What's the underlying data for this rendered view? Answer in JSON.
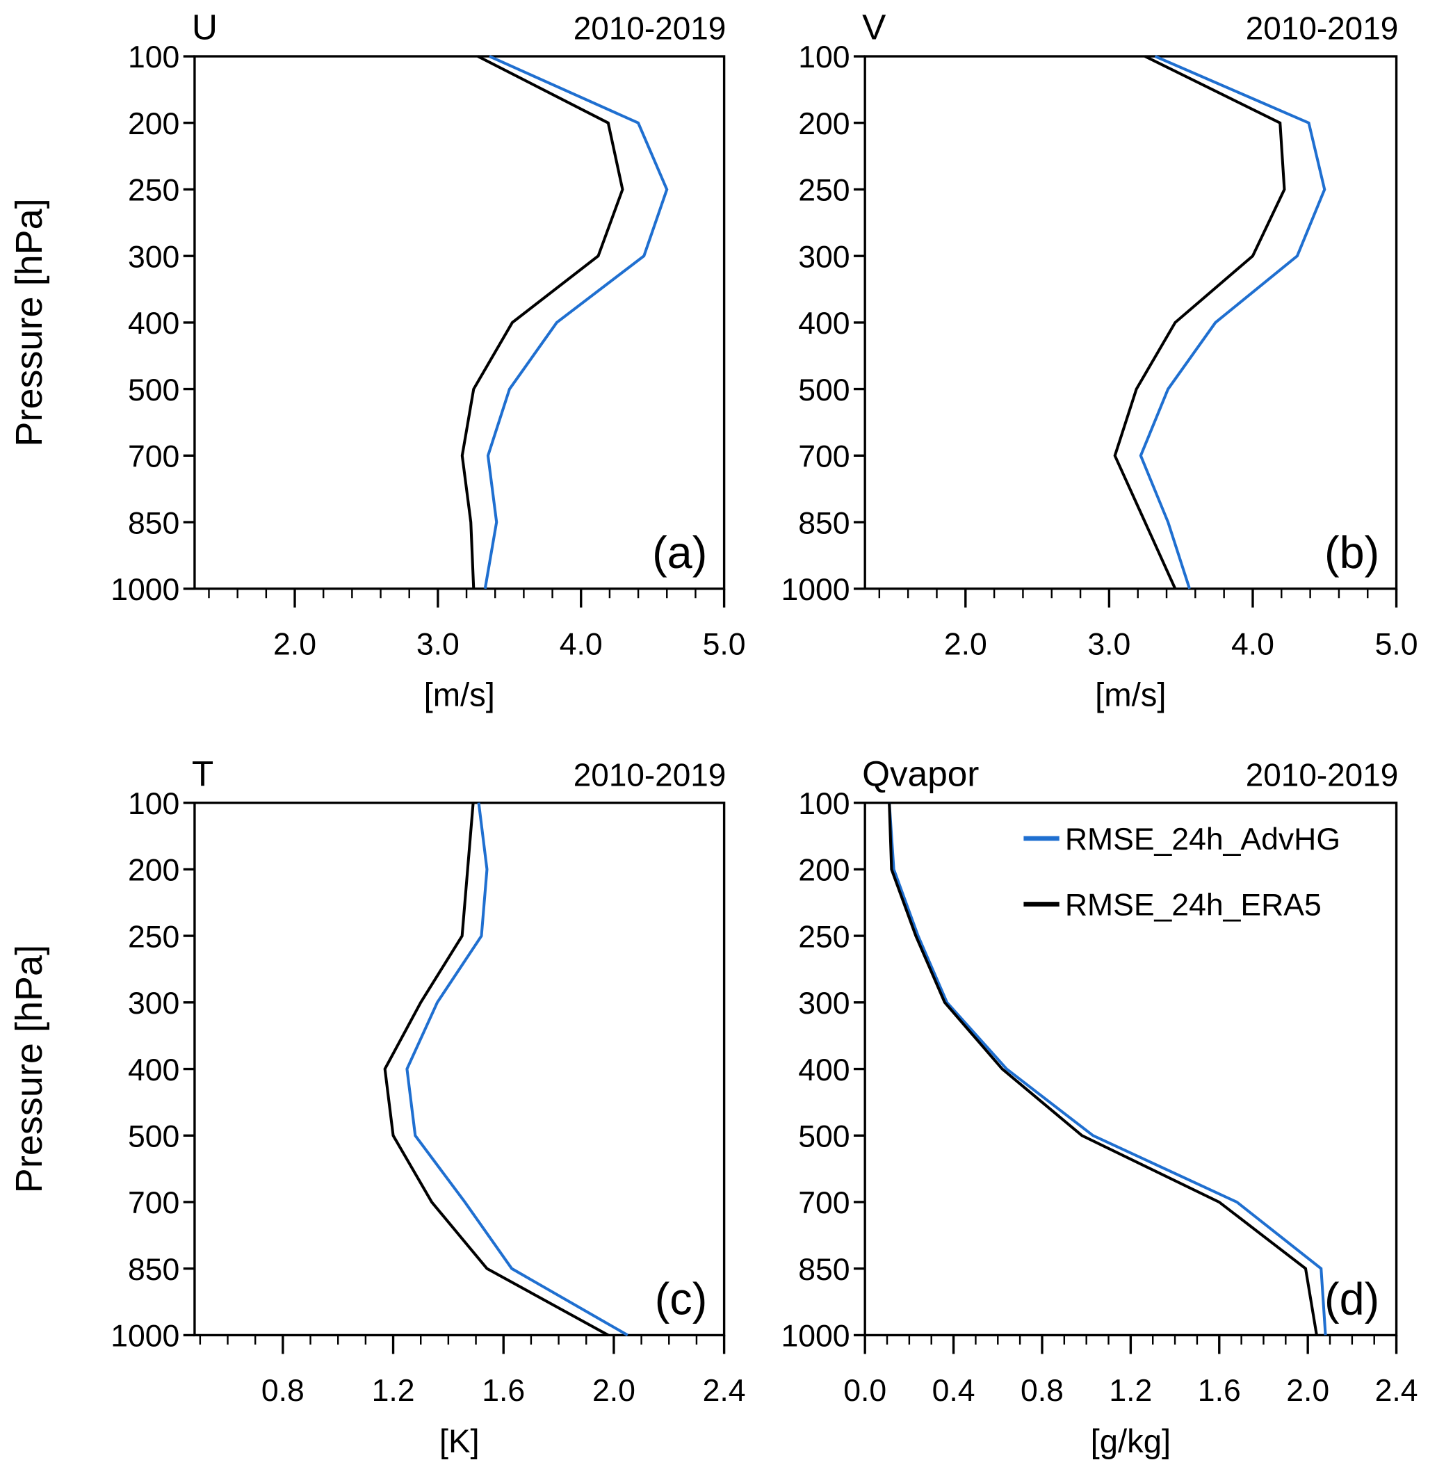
{
  "colors": {
    "blue": "#1f6fd0",
    "black": "#000000"
  },
  "legend": {
    "placement": "top-right of panel (d)",
    "entries": [
      "RMSE_24h_AdvHG",
      "RMSE_24h_ERA5"
    ]
  },
  "chart_data": [
    {
      "type": "line",
      "title": "U",
      "subtitle": "2010-2019",
      "panel_label": "(a)",
      "xlabel": "[m/s]",
      "ylabel": "Pressure [hPa]",
      "xlim": [
        1.3,
        5.0
      ],
      "x_ticks": [
        "2.0",
        "3.0",
        "4.0",
        "5.0"
      ],
      "x_major_step": 1.0,
      "x_minor_step": 0.2,
      "levels": [
        100,
        200,
        250,
        300,
        400,
        500,
        700,
        850,
        1000
      ],
      "y_tick_labels": [
        "100",
        "200",
        "250",
        "300",
        "400",
        "500",
        "700",
        "850",
        "1000"
      ],
      "series": [
        {
          "name": "RMSE_24h_AdvHG",
          "color": "#1f6fd0",
          "values": [
            3.36,
            4.4,
            4.6,
            4.44,
            3.83,
            3.5,
            3.35,
            3.41,
            3.33
          ]
        },
        {
          "name": "RMSE_24h_ERA5",
          "color": "#000000",
          "values": [
            3.28,
            4.19,
            4.29,
            4.12,
            3.52,
            3.25,
            3.17,
            3.23,
            3.25
          ]
        }
      ]
    },
    {
      "type": "line",
      "title": "V",
      "subtitle": "2010-2019",
      "panel_label": "(b)",
      "xlabel": "[m/s]",
      "ylabel": "",
      "xlim": [
        1.3,
        5.0
      ],
      "x_ticks": [
        "2.0",
        "3.0",
        "4.0",
        "5.0"
      ],
      "x_major_step": 1.0,
      "x_minor_step": 0.2,
      "levels": [
        100,
        200,
        250,
        300,
        400,
        500,
        700,
        850,
        1000
      ],
      "y_tick_labels": [
        "100",
        "200",
        "250",
        "300",
        "400",
        "500",
        "700",
        "850",
        "1000"
      ],
      "series": [
        {
          "name": "RMSE_24h_AdvHG",
          "color": "#1f6fd0",
          "values": [
            3.32,
            4.39,
            4.5,
            4.31,
            3.74,
            3.41,
            3.22,
            3.41,
            3.56
          ]
        },
        {
          "name": "RMSE_24h_ERA5",
          "color": "#000000",
          "values": [
            3.25,
            4.19,
            4.22,
            4.0,
            3.46,
            3.19,
            3.04,
            3.25,
            3.46
          ]
        }
      ]
    },
    {
      "type": "line",
      "title": "T",
      "subtitle": "2010-2019",
      "panel_label": "(c)",
      "xlabel": "[K]",
      "ylabel": "Pressure [hPa]",
      "xlim": [
        0.48,
        2.4
      ],
      "x_ticks": [
        "0.8",
        "1.2",
        "1.6",
        "2.0",
        "2.4"
      ],
      "x_major_step": 0.4,
      "x_minor_step": 0.1,
      "levels": [
        100,
        200,
        250,
        300,
        400,
        500,
        700,
        850,
        1000
      ],
      "y_tick_labels": [
        "100",
        "200",
        "250",
        "300",
        "400",
        "500",
        "700",
        "850",
        "1000"
      ],
      "series": [
        {
          "name": "RMSE_24h_AdvHG",
          "color": "#1f6fd0",
          "values": [
            1.51,
            1.54,
            1.52,
            1.36,
            1.25,
            1.28,
            1.46,
            1.63,
            2.05
          ]
        },
        {
          "name": "RMSE_24h_ERA5",
          "color": "#000000",
          "values": [
            1.49,
            1.47,
            1.45,
            1.3,
            1.17,
            1.2,
            1.34,
            1.54,
            1.98
          ]
        }
      ]
    },
    {
      "type": "line",
      "title": "Qvapor",
      "subtitle": "2010-2019",
      "panel_label": "(d)",
      "xlabel": "[g/kg]",
      "ylabel": "",
      "xlim": [
        0.0,
        2.4
      ],
      "x_ticks": [
        "0.0",
        "0.4",
        "0.8",
        "1.2",
        "1.6",
        "2.0",
        "2.4"
      ],
      "x_major_step": 0.4,
      "x_minor_step": 0.1,
      "levels": [
        100,
        200,
        250,
        300,
        400,
        500,
        700,
        850,
        1000
      ],
      "y_tick_labels": [
        "100",
        "200",
        "250",
        "300",
        "400",
        "500",
        "700",
        "850",
        "1000"
      ],
      "series": [
        {
          "name": "RMSE_24h_AdvHG",
          "color": "#1f6fd0",
          "values": [
            0.11,
            0.13,
            0.24,
            0.37,
            0.64,
            1.03,
            1.68,
            2.06,
            2.08
          ]
        },
        {
          "name": "RMSE_24h_ERA5",
          "color": "#000000",
          "values": [
            0.11,
            0.12,
            0.23,
            0.36,
            0.62,
            0.98,
            1.6,
            1.99,
            2.04
          ]
        }
      ]
    }
  ]
}
